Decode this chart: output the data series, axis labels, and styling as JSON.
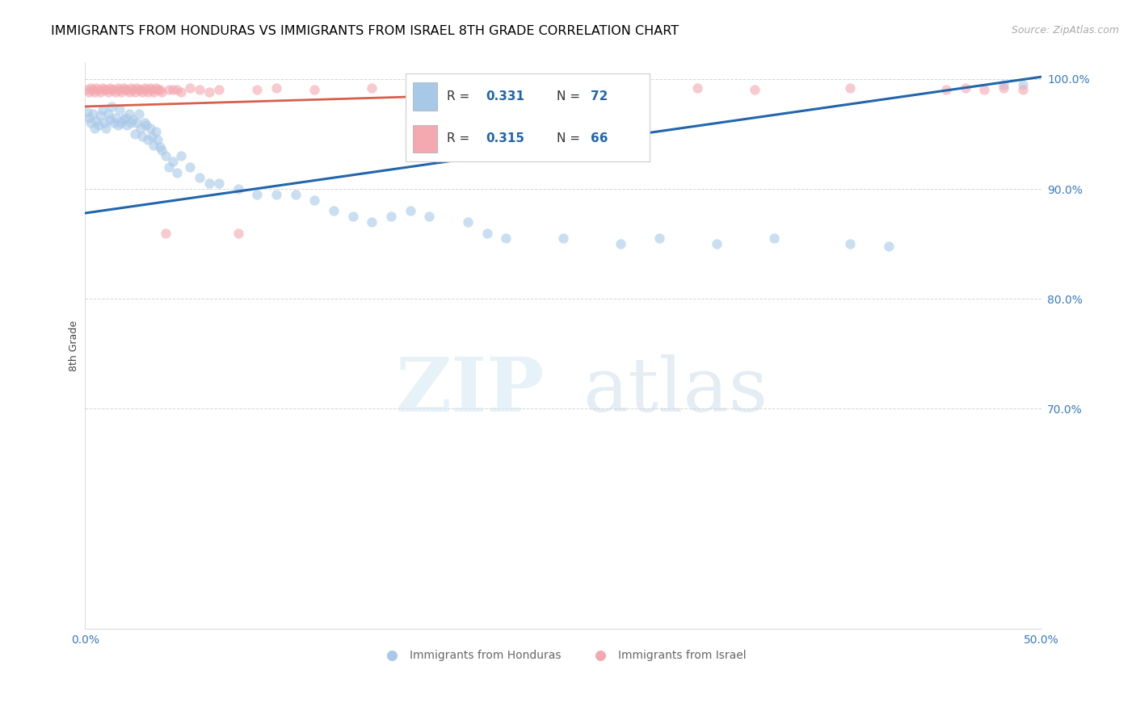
{
  "title": "IMMIGRANTS FROM HONDURAS VS IMMIGRANTS FROM ISRAEL 8TH GRADE CORRELATION CHART",
  "source": "Source: ZipAtlas.com",
  "xlabel_label": "Immigrants from Honduras",
  "ylabel_label": "Immigrants from Israel",
  "ylabel_axis": "8th Grade",
  "x_min": 0.0,
  "x_max": 0.5,
  "y_min": 0.5,
  "y_max": 1.015,
  "x_ticks": [
    0.0,
    0.1,
    0.2,
    0.3,
    0.4,
    0.5
  ],
  "x_tick_labels": [
    "0.0%",
    "",
    "",
    "",
    "",
    "50.0%"
  ],
  "y_ticks_right": [
    0.7,
    0.8,
    0.9,
    1.0
  ],
  "y_tick_labels_right": [
    "70.0%",
    "80.0%",
    "90.0%",
    "100.0%"
  ],
  "legend_r1": "0.331",
  "legend_n1": "72",
  "legend_r2": "0.315",
  "legend_n2": "66",
  "color_honduras": "#a8c8e8",
  "color_israel": "#f4a8b0",
  "trend_color_honduras": "#2166ac",
  "trend_color_israel": "#d6604d",
  "watermark_zip": "ZIP",
  "watermark_atlas": "atlas",
  "title_fontsize": 11.5,
  "source_fontsize": 9,
  "axis_label_fontsize": 9,
  "tick_fontsize": 10,
  "legend_fontsize": 11,
  "scatter_alpha": 0.6,
  "scatter_size": 80,
  "honduras_x": [
    0.001,
    0.002,
    0.003,
    0.004,
    0.005,
    0.006,
    0.007,
    0.008,
    0.009,
    0.01,
    0.011,
    0.012,
    0.013,
    0.014,
    0.015,
    0.016,
    0.017,
    0.018,
    0.019,
    0.02,
    0.021,
    0.022,
    0.023,
    0.024,
    0.025,
    0.026,
    0.027,
    0.028,
    0.029,
    0.03,
    0.031,
    0.032,
    0.033,
    0.034,
    0.035,
    0.036,
    0.037,
    0.038,
    0.039,
    0.04,
    0.042,
    0.044,
    0.046,
    0.048,
    0.05,
    0.055,
    0.06,
    0.065,
    0.07,
    0.08,
    0.09,
    0.1,
    0.11,
    0.12,
    0.13,
    0.14,
    0.15,
    0.16,
    0.17,
    0.18,
    0.2,
    0.21,
    0.22,
    0.25,
    0.28,
    0.3,
    0.33,
    0.36,
    0.4,
    0.42,
    0.48,
    0.49
  ],
  "honduras_y": [
    0.97,
    0.965,
    0.96,
    0.968,
    0.955,
    0.962,
    0.958,
    0.967,
    0.972,
    0.96,
    0.955,
    0.968,
    0.963,
    0.975,
    0.96,
    0.965,
    0.958,
    0.972,
    0.96,
    0.963,
    0.965,
    0.958,
    0.968,
    0.96,
    0.963,
    0.95,
    0.96,
    0.968,
    0.955,
    0.948,
    0.96,
    0.958,
    0.945,
    0.955,
    0.948,
    0.94,
    0.952,
    0.945,
    0.938,
    0.935,
    0.93,
    0.92,
    0.925,
    0.915,
    0.93,
    0.92,
    0.91,
    0.905,
    0.905,
    0.9,
    0.895,
    0.895,
    0.895,
    0.89,
    0.88,
    0.875,
    0.87,
    0.875,
    0.88,
    0.875,
    0.87,
    0.86,
    0.855,
    0.855,
    0.85,
    0.855,
    0.85,
    0.855,
    0.85,
    0.848,
    0.995,
    0.995
  ],
  "israel_x": [
    0.001,
    0.002,
    0.003,
    0.004,
    0.005,
    0.006,
    0.007,
    0.008,
    0.009,
    0.01,
    0.011,
    0.012,
    0.013,
    0.014,
    0.015,
    0.016,
    0.017,
    0.018,
    0.019,
    0.02,
    0.021,
    0.022,
    0.023,
    0.024,
    0.025,
    0.026,
    0.027,
    0.028,
    0.029,
    0.03,
    0.031,
    0.032,
    0.033,
    0.034,
    0.035,
    0.036,
    0.037,
    0.038,
    0.039,
    0.04,
    0.042,
    0.044,
    0.046,
    0.048,
    0.05,
    0.055,
    0.06,
    0.065,
    0.07,
    0.08,
    0.09,
    0.1,
    0.12,
    0.15,
    0.18,
    0.22,
    0.26,
    0.29,
    0.32,
    0.35,
    0.4,
    0.45,
    0.46,
    0.47,
    0.48,
    0.49
  ],
  "israel_y": [
    0.99,
    0.988,
    0.992,
    0.99,
    0.988,
    0.992,
    0.99,
    0.988,
    0.992,
    0.99,
    0.99,
    0.988,
    0.992,
    0.99,
    0.99,
    0.988,
    0.992,
    0.99,
    0.988,
    0.992,
    0.99,
    0.99,
    0.988,
    0.992,
    0.99,
    0.988,
    0.992,
    0.99,
    0.99,
    0.988,
    0.992,
    0.99,
    0.988,
    0.992,
    0.99,
    0.988,
    0.992,
    0.99,
    0.99,
    0.988,
    0.86,
    0.99,
    0.99,
    0.99,
    0.988,
    0.992,
    0.99,
    0.988,
    0.99,
    0.86,
    0.99,
    0.992,
    0.99,
    0.992,
    0.99,
    0.992,
    0.99,
    0.99,
    0.992,
    0.99,
    0.992,
    0.99,
    0.992,
    0.99,
    0.992,
    0.99
  ],
  "trend_h_x0": 0.0,
  "trend_h_y0": 0.878,
  "trend_h_x1": 0.5,
  "trend_h_y1": 1.002,
  "trend_i_x0": 0.0,
  "trend_i_y0": 0.975,
  "trend_i_x1": 0.29,
  "trend_i_y1": 0.99
}
